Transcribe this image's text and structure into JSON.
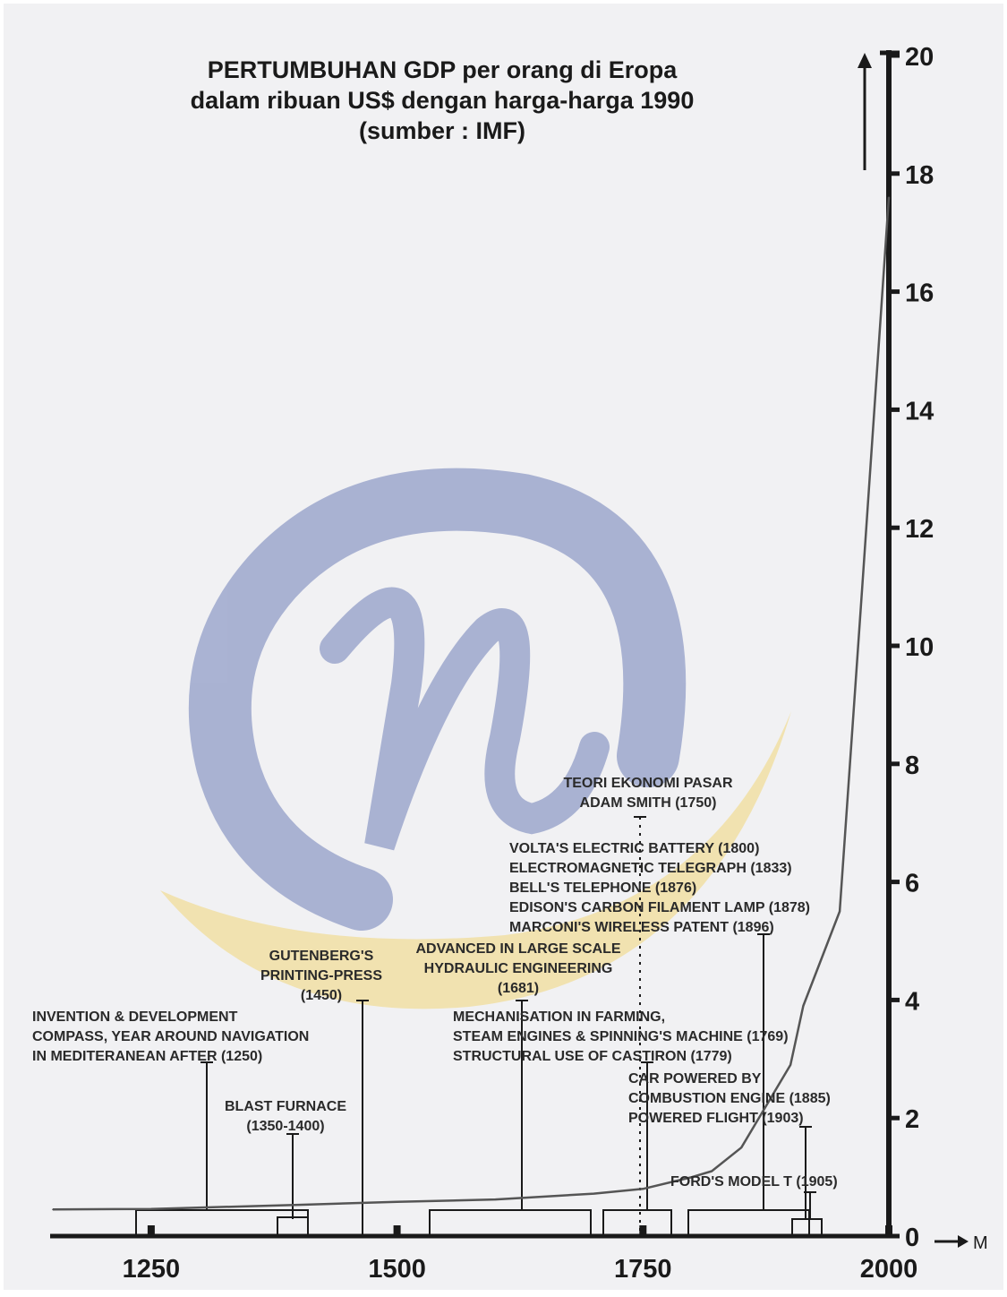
{
  "title": {
    "line1": "PERTUMBUHAN GDP per orang di Eropa",
    "line2": "dalam ribuan US$ dengan harga-harga 1990",
    "line3": "(sumber : IMF)"
  },
  "chart_data": {
    "type": "line",
    "title": "PERTUMBUHAN GDP per orang di Eropa dalam ribuan US$ dengan harga-harga 1990 (sumber : IMF)",
    "xlabel": "M",
    "ylabel": "",
    "xlim": [
      1150,
      2000
    ],
    "ylim": [
      0,
      20
    ],
    "x_ticks": [
      "1250",
      "1500",
      "1750",
      "2000"
    ],
    "y_ticks": [
      "0",
      "2",
      "4",
      "6",
      "8",
      "10",
      "12",
      "14",
      "16",
      "18",
      "20"
    ],
    "grid": false,
    "legend": "none",
    "series": [
      {
        "x": [
          1150,
          1250,
          1400,
          1500,
          1600,
          1700,
          1750,
          1800,
          1820,
          1850,
          1900,
          1913,
          1950,
          1973,
          2000
        ],
        "y": [
          0.45,
          0.46,
          0.53,
          0.58,
          0.62,
          0.72,
          0.8,
          1.0,
          1.1,
          1.5,
          2.9,
          3.9,
          5.5,
          11.0,
          17.6
        ]
      }
    ],
    "annotations": [
      {
        "id": "compass",
        "lines": [
          "INVENTION & DEVELOPMENT",
          "COMPASS, YEAR AROUND NAVIGATION",
          "IN MEDITERANEAN AFTER (1250)"
        ]
      },
      {
        "id": "blast",
        "lines": [
          "BLAST FURNACE",
          "(1350-1400)"
        ]
      },
      {
        "id": "gutenberg",
        "lines": [
          "GUTENBERG'S",
          "PRINTING-PRESS",
          "(1450)"
        ]
      },
      {
        "id": "hydraulic",
        "lines": [
          "ADVANCED IN LARGE SCALE",
          "HYDRAULIC ENGINEERING",
          "(1681)"
        ]
      },
      {
        "id": "farming",
        "lines": [
          "MECHANISATION IN FARMING,",
          "STEAM ENGINES & SPINNING'S MACHINE (1769)",
          "STRUCTURAL USE OF CASTIRON (1779)"
        ]
      },
      {
        "id": "smith",
        "lines": [
          "TEORI EKONOMI PASAR",
          "ADAM SMITH (1750)"
        ]
      },
      {
        "id": "electric",
        "lines": [
          "VOLTA'S ELECTRIC BATTERY (1800)",
          "ELECTROMAGNETIC TELEGRAPH (1833)",
          "BELL'S TELEPHONE (1876)",
          "EDISON'S CARBON FILAMENT LAMP (1878)",
          "MARCONI'S WIRELESS PATENT (1896)"
        ]
      },
      {
        "id": "car",
        "lines": [
          "CAR POWERED BY",
          "COMBUSTION ENGINE (1885)",
          "POWERED FLIGHT (1903)"
        ]
      },
      {
        "id": "ford",
        "lines": [
          "FORD'S MODEL T (1905)"
        ]
      }
    ]
  },
  "watermark": {
    "description_icon": "at-sign-logo-watermark",
    "ring_color": "#6f7fb8",
    "swoosh_color": "#f2d77a"
  },
  "colors": {
    "axis": "#1a1a1a",
    "line": "#555555",
    "text": "#2a2a2a"
  }
}
